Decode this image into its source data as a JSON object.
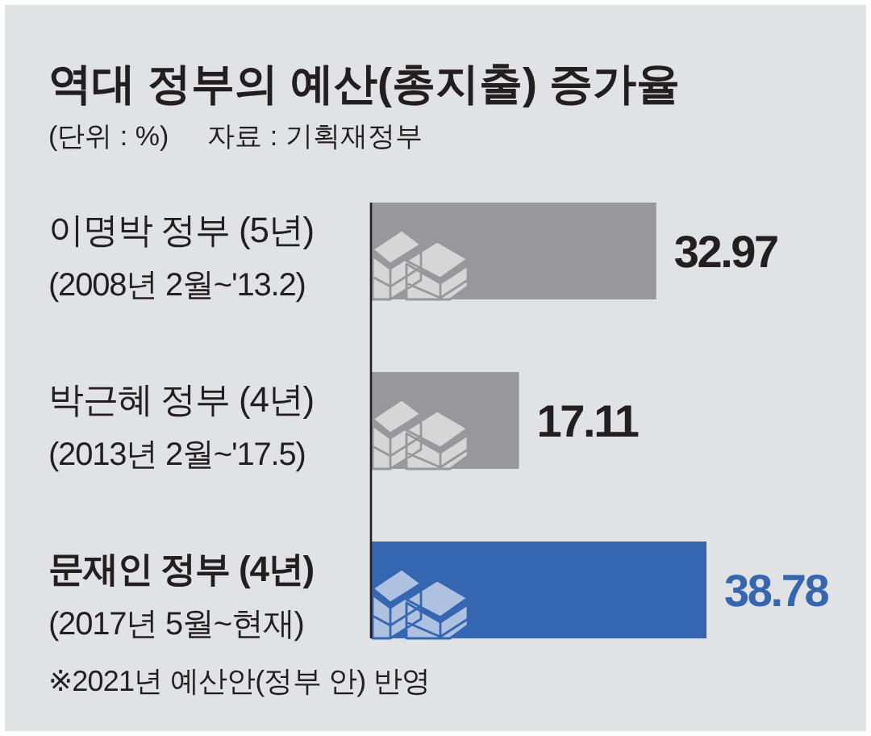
{
  "chart_data": {
    "type": "bar",
    "orientation": "horizontal",
    "title": "역대 정부의 예산(총지출) 증가율",
    "subtitle": "(단위 : %)",
    "annotations": [
      "자료 : 기획재정부",
      "※2021년 예산안(정부 안) 반영"
    ],
    "categories": [
      "이명박 정부 (5년)\n(2008년 2월~'13.2)",
      "박근혜 정부 (4년)\n(2013년 2월~'17.5)",
      "문재인 정부 (4년)\n(2017년 5월~현재)"
    ],
    "values": [
      32.97,
      17.11,
      38.78
    ],
    "colors": [
      "#98989b",
      "#98989b",
      "#3466b1"
    ],
    "data_labels": true
  }
}
